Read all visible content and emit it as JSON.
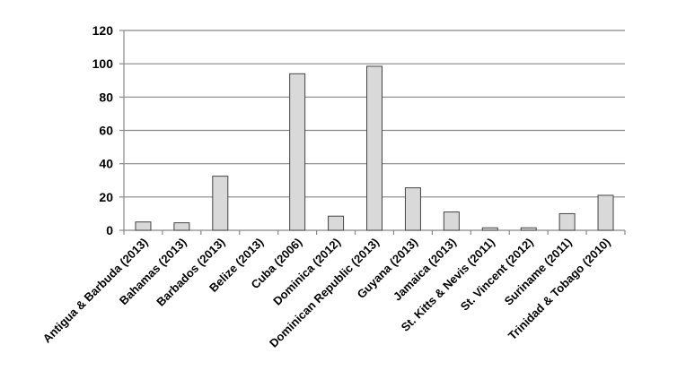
{
  "chart_data": {
    "type": "bar",
    "title": "",
    "xlabel": "",
    "ylabel": "",
    "ylim": [
      0,
      120
    ],
    "yticks": [
      0,
      20,
      40,
      60,
      80,
      100,
      120
    ],
    "grid": true,
    "legend": "none",
    "categories": [
      "Antigua & Barbuda (2013)",
      "Bahamas (2013)",
      "Barbados (2013)",
      "Belize (2013)",
      "Cuba (2006)",
      "Dominica (2012)",
      "Dominican Republic (2013)",
      "Guyana (2013)",
      "Jamaica (2013)",
      "St. Kitts & Nevis (2011)",
      "St. Vincent  (2012)",
      "Suriname  (2011)",
      "Trinidad & Tobago  (2010)"
    ],
    "values": [
      5,
      4.5,
      32.5,
      0,
      94,
      8.5,
      98.5,
      25.5,
      11,
      1.5,
      1.5,
      10,
      21
    ],
    "colors": {
      "bar_fill": "#d9d9d9",
      "bar_stroke": "#444444",
      "grid": "#888888",
      "axis": "#888888"
    }
  }
}
